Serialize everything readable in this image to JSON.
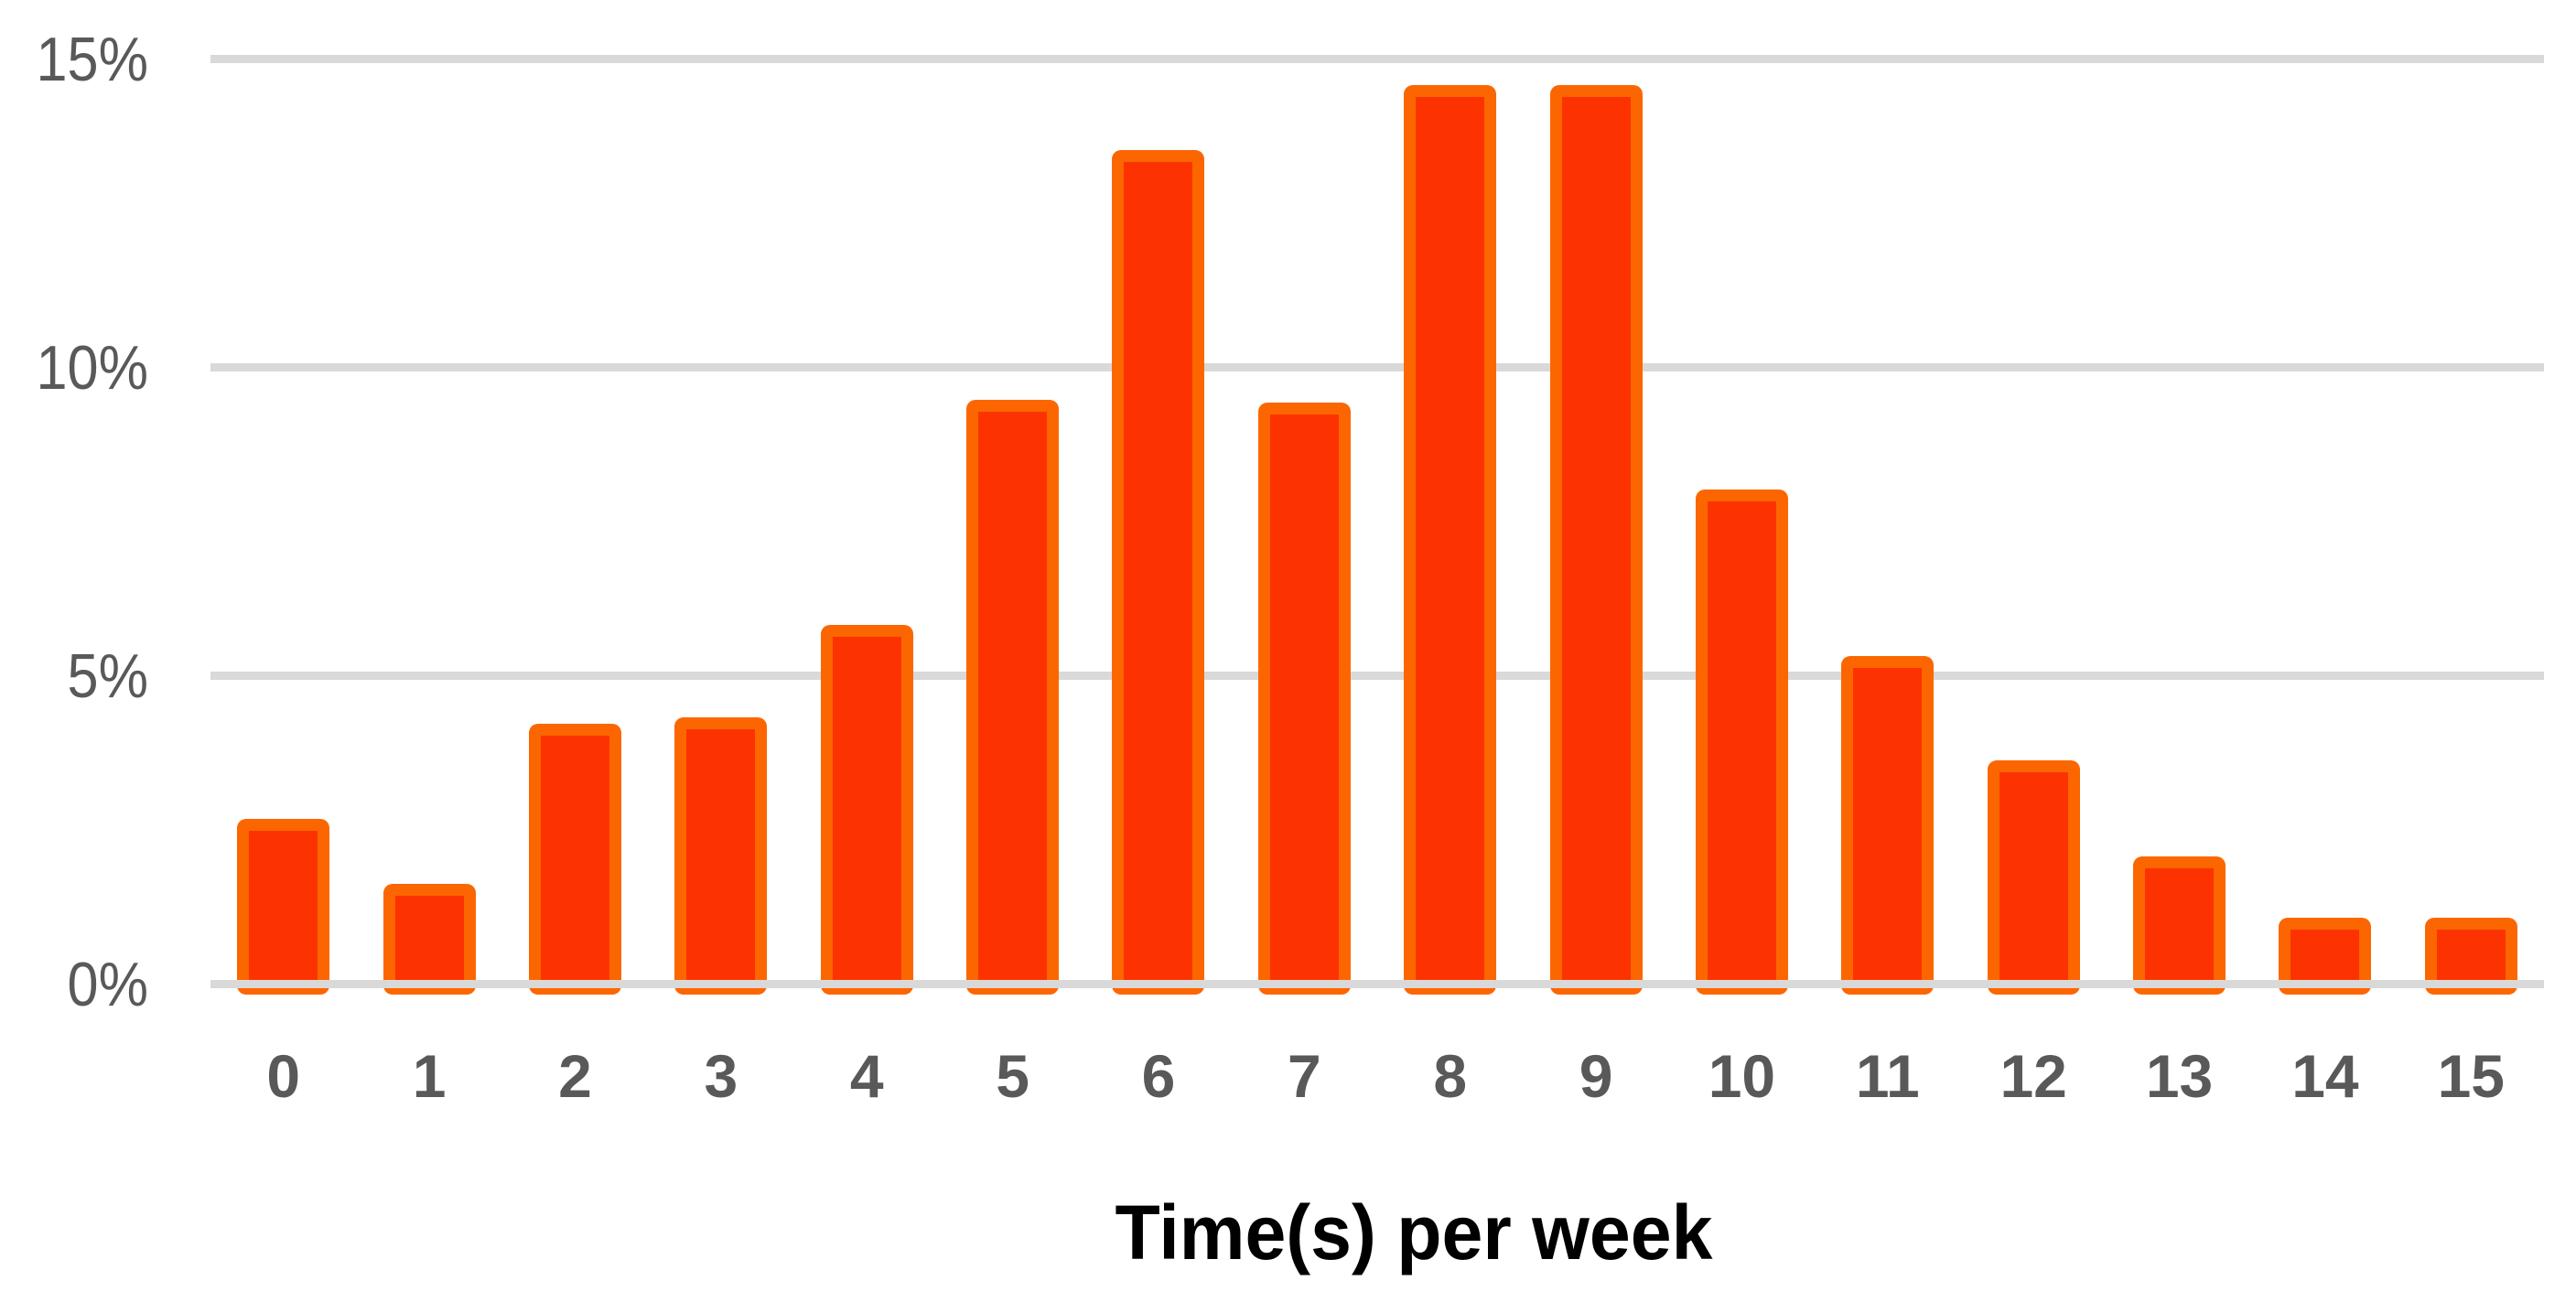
{
  "chart_data": {
    "type": "bar",
    "title": "",
    "xlabel": "Time(s) per week",
    "ylabel": "",
    "categories": [
      "0",
      "1",
      "2",
      "3",
      "4",
      "5",
      "6",
      "7",
      "8",
      "9",
      "10",
      "11",
      "12",
      "13",
      "14",
      "15"
    ],
    "values": [
      2.65,
      1.6,
      4.2,
      4.3,
      5.8,
      9.45,
      13.5,
      9.4,
      14.55,
      14.55,
      8.0,
      5.3,
      3.6,
      2.05,
      1.05,
      1.05
    ],
    "unit": "%",
    "y_ticks": [
      "0%",
      "5%",
      "10%",
      "15%"
    ],
    "y_tick_values": [
      0,
      5,
      10,
      15
    ],
    "ylim": [
      0,
      15
    ],
    "grid": true,
    "legend": "none",
    "colors": {
      "bar_fill": "#fc3300",
      "bar_border": "#fc6600",
      "gridline": "#d9d9d9",
      "tick_text": "#595959",
      "title_text": "#000000",
      "background": "#ffffff"
    }
  }
}
